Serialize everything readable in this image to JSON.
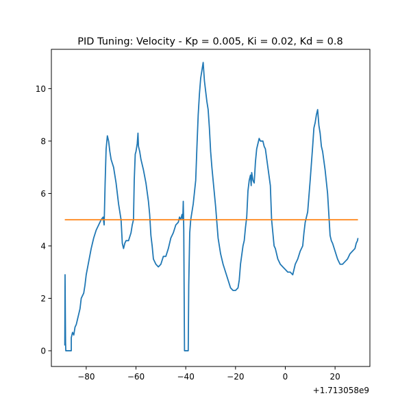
{
  "chart_data": {
    "type": "line",
    "title": "PID Tuning: Velocity - Kp = 0.005, Ki = 0.02, Kd = 0.8",
    "xlabel": "",
    "ylabel": "",
    "x_offset_label": "+1.713058e9",
    "xlim": [
      -94,
      34
    ],
    "ylim": [
      -0.6,
      11.5
    ],
    "x_ticks": [
      -80,
      -60,
      -40,
      -20,
      0,
      20
    ],
    "x_tick_labels": [
      "−80",
      "−60",
      "−40",
      "−20",
      "0",
      "20"
    ],
    "y_ticks": [
      0,
      2,
      4,
      6,
      8,
      10
    ],
    "y_tick_labels": [
      "0",
      "2",
      "4",
      "6",
      "8",
      "10"
    ],
    "grid": false,
    "series": [
      {
        "color": "#1f77b4",
        "points": [
          [
            -88.6,
            0.2
          ],
          [
            -88.5,
            2.9
          ],
          [
            -88.4,
            1.5
          ],
          [
            -88.3,
            0.3
          ],
          [
            -88.2,
            0.0
          ],
          [
            -86.0,
            0.0
          ],
          [
            -86.0,
            0.5
          ],
          [
            -85.5,
            0.7
          ],
          [
            -85.0,
            0.6
          ],
          [
            -84.5,
            0.9
          ],
          [
            -84.0,
            1.0
          ],
          [
            -83.5,
            1.2
          ],
          [
            -83.0,
            1.4
          ],
          [
            -82.5,
            1.6
          ],
          [
            -82.0,
            2.0
          ],
          [
            -81.5,
            2.1
          ],
          [
            -81.0,
            2.2
          ],
          [
            -80.5,
            2.5
          ],
          [
            -80.0,
            2.9
          ],
          [
            -79.0,
            3.4
          ],
          [
            -78.0,
            3.9
          ],
          [
            -77.0,
            4.3
          ],
          [
            -76.0,
            4.6
          ],
          [
            -75.0,
            4.8
          ],
          [
            -74.0,
            5.0
          ],
          [
            -73.2,
            5.1
          ],
          [
            -72.8,
            4.8
          ],
          [
            -72.4,
            6.4
          ],
          [
            -72.0,
            7.7
          ],
          [
            -71.5,
            8.2
          ],
          [
            -71.0,
            8.0
          ],
          [
            -70.5,
            7.6
          ],
          [
            -70.0,
            7.3
          ],
          [
            -69.0,
            7.0
          ],
          [
            -68.0,
            6.4
          ],
          [
            -67.0,
            5.6
          ],
          [
            -66.0,
            5.0
          ],
          [
            -65.5,
            4.1
          ],
          [
            -65.0,
            3.9
          ],
          [
            -64.5,
            4.1
          ],
          [
            -64.0,
            4.2
          ],
          [
            -63.5,
            4.2
          ],
          [
            -63.0,
            4.2
          ],
          [
            -62.0,
            4.5
          ],
          [
            -61.5,
            4.8
          ],
          [
            -61.0,
            5.0
          ],
          [
            -60.7,
            6.5
          ],
          [
            -60.3,
            7.5
          ],
          [
            -60.0,
            7.6
          ],
          [
            -59.5,
            7.9
          ],
          [
            -59.2,
            8.3
          ],
          [
            -59.0,
            7.8
          ],
          [
            -58.5,
            7.6
          ],
          [
            -58.0,
            7.3
          ],
          [
            -57.0,
            6.9
          ],
          [
            -56.0,
            6.4
          ],
          [
            -55.0,
            5.7
          ],
          [
            -54.5,
            5.2
          ],
          [
            -54.0,
            4.4
          ],
          [
            -53.5,
            4.0
          ],
          [
            -53.0,
            3.5
          ],
          [
            -52.0,
            3.3
          ],
          [
            -51.0,
            3.2
          ],
          [
            -50.0,
            3.3
          ],
          [
            -49.0,
            3.6
          ],
          [
            -48.0,
            3.6
          ],
          [
            -47.0,
            3.9
          ],
          [
            -46.0,
            4.3
          ],
          [
            -45.0,
            4.5
          ],
          [
            -44.0,
            4.8
          ],
          [
            -43.0,
            4.9
          ],
          [
            -42.5,
            5.1
          ],
          [
            -42.0,
            5.0
          ],
          [
            -41.5,
            5.2
          ],
          [
            -41.2,
            5.0
          ],
          [
            -41.0,
            5.7
          ],
          [
            -40.8,
            4.6
          ],
          [
            -40.5,
            0.0
          ],
          [
            -39.0,
            0.0
          ],
          [
            -38.8,
            2.5
          ],
          [
            -38.4,
            4.5
          ],
          [
            -38.0,
            5.0
          ],
          [
            -37.0,
            5.6
          ],
          [
            -36.0,
            6.5
          ],
          [
            -35.5,
            7.8
          ],
          [
            -35.0,
            9.0
          ],
          [
            -34.5,
            9.8
          ],
          [
            -34.0,
            10.4
          ],
          [
            -33.5,
            10.7
          ],
          [
            -33.0,
            11.0
          ],
          [
            -32.5,
            10.3
          ],
          [
            -32.0,
            9.9
          ],
          [
            -31.5,
            9.5
          ],
          [
            -31.0,
            9.2
          ],
          [
            -30.5,
            8.5
          ],
          [
            -30.0,
            7.6
          ],
          [
            -29.5,
            7.0
          ],
          [
            -29.0,
            6.5
          ],
          [
            -28.5,
            6.0
          ],
          [
            -28.0,
            5.5
          ],
          [
            -27.0,
            4.3
          ],
          [
            -26.0,
            3.7
          ],
          [
            -25.0,
            3.3
          ],
          [
            -24.0,
            3.0
          ],
          [
            -23.0,
            2.7
          ],
          [
            -22.0,
            2.4
          ],
          [
            -21.0,
            2.3
          ],
          [
            -20.0,
            2.3
          ],
          [
            -19.0,
            2.4
          ],
          [
            -18.5,
            2.7
          ],
          [
            -18.0,
            3.3
          ],
          [
            -17.0,
            4.0
          ],
          [
            -16.5,
            4.2
          ],
          [
            -16.0,
            4.7
          ],
          [
            -15.5,
            5.1
          ],
          [
            -15.0,
            6.1
          ],
          [
            -14.5,
            6.5
          ],
          [
            -14.0,
            6.7
          ],
          [
            -13.7,
            6.3
          ],
          [
            -13.5,
            6.8
          ],
          [
            -13.0,
            6.5
          ],
          [
            -12.5,
            6.4
          ],
          [
            -12.0,
            7.2
          ],
          [
            -11.5,
            7.7
          ],
          [
            -11.0,
            7.9
          ],
          [
            -10.5,
            8.1
          ],
          [
            -10.0,
            8.0
          ],
          [
            -9.0,
            8.0
          ],
          [
            -8.5,
            7.8
          ],
          [
            -8.0,
            7.7
          ],
          [
            -7.0,
            7.0
          ],
          [
            -6.0,
            6.3
          ],
          [
            -5.5,
            5.0
          ],
          [
            -5.0,
            4.5
          ],
          [
            -4.5,
            4.0
          ],
          [
            -4.0,
            3.9
          ],
          [
            -3.0,
            3.5
          ],
          [
            -2.0,
            3.3
          ],
          [
            -1.0,
            3.2
          ],
          [
            0.0,
            3.1
          ],
          [
            1.0,
            3.0
          ],
          [
            2.0,
            3.0
          ],
          [
            3.0,
            2.9
          ],
          [
            4.0,
            3.3
          ],
          [
            5.0,
            3.5
          ],
          [
            6.0,
            3.8
          ],
          [
            7.0,
            4.0
          ],
          [
            7.5,
            4.5
          ],
          [
            8.0,
            4.9
          ],
          [
            9.0,
            5.3
          ],
          [
            10.0,
            6.5
          ],
          [
            11.0,
            7.8
          ],
          [
            11.5,
            8.5
          ],
          [
            12.0,
            8.7
          ],
          [
            12.5,
            9.0
          ],
          [
            13.0,
            9.2
          ],
          [
            13.5,
            8.6
          ],
          [
            14.0,
            8.3
          ],
          [
            14.5,
            7.8
          ],
          [
            15.0,
            7.6
          ],
          [
            16.0,
            6.9
          ],
          [
            17.0,
            6.0
          ],
          [
            17.5,
            5.2
          ],
          [
            18.0,
            4.4
          ],
          [
            18.5,
            4.2
          ],
          [
            19.0,
            4.1
          ],
          [
            20.0,
            3.8
          ],
          [
            21.0,
            3.5
          ],
          [
            22.0,
            3.3
          ],
          [
            23.0,
            3.3
          ],
          [
            24.0,
            3.4
          ],
          [
            25.0,
            3.5
          ],
          [
            26.0,
            3.7
          ],
          [
            27.0,
            3.8
          ],
          [
            28.0,
            3.9
          ],
          [
            28.5,
            4.1
          ],
          [
            29.0,
            4.2
          ],
          [
            29.2,
            4.3
          ]
        ]
      },
      {
        "color": "#ff7f0e",
        "points": [
          [
            -88.6,
            5.0
          ],
          [
            29.2,
            5.0
          ]
        ]
      }
    ]
  }
}
